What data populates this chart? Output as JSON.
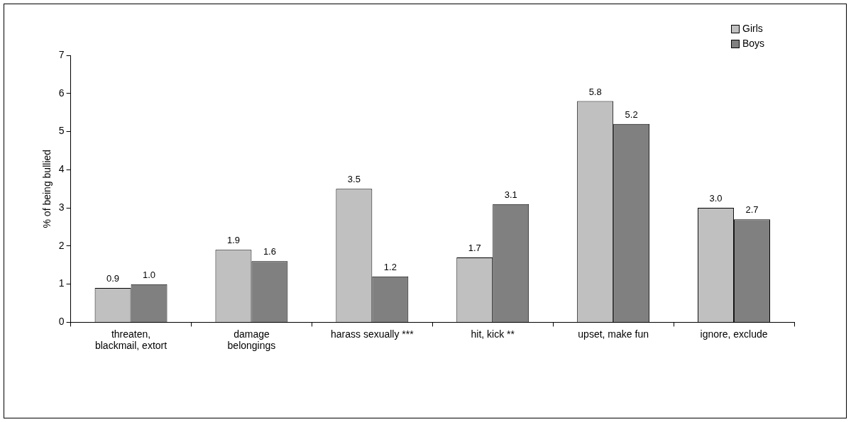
{
  "chart_data": {
    "type": "bar",
    "ylabel": "% of being bullied",
    "categories": [
      "threaten,\nblackmail, extort",
      "damage\nbelongings",
      "harass sexually ***",
      "hit, kick **",
      "upset, make fun",
      "ignore, exclude"
    ],
    "series": [
      {
        "name": "Girls",
        "color": "#c0c0c0",
        "values": [
          0.9,
          1.9,
          3.5,
          1.7,
          5.8,
          3.0
        ]
      },
      {
        "name": "Boys",
        "color": "#808080",
        "values": [
          1.0,
          1.6,
          1.2,
          3.1,
          5.2,
          2.7
        ]
      }
    ],
    "value_labels": [
      [
        "0.9",
        "1.9",
        "3.5",
        "1.7",
        "5.8",
        "3.0"
      ],
      [
        "1.0",
        "1.6",
        "1.2",
        "3.1",
        "5.2",
        "2.7"
      ]
    ],
    "ylim": [
      0,
      7
    ],
    "yticks": [
      0,
      1,
      2,
      3,
      4,
      5,
      6,
      7
    ],
    "grid": false,
    "legend": "top right"
  }
}
